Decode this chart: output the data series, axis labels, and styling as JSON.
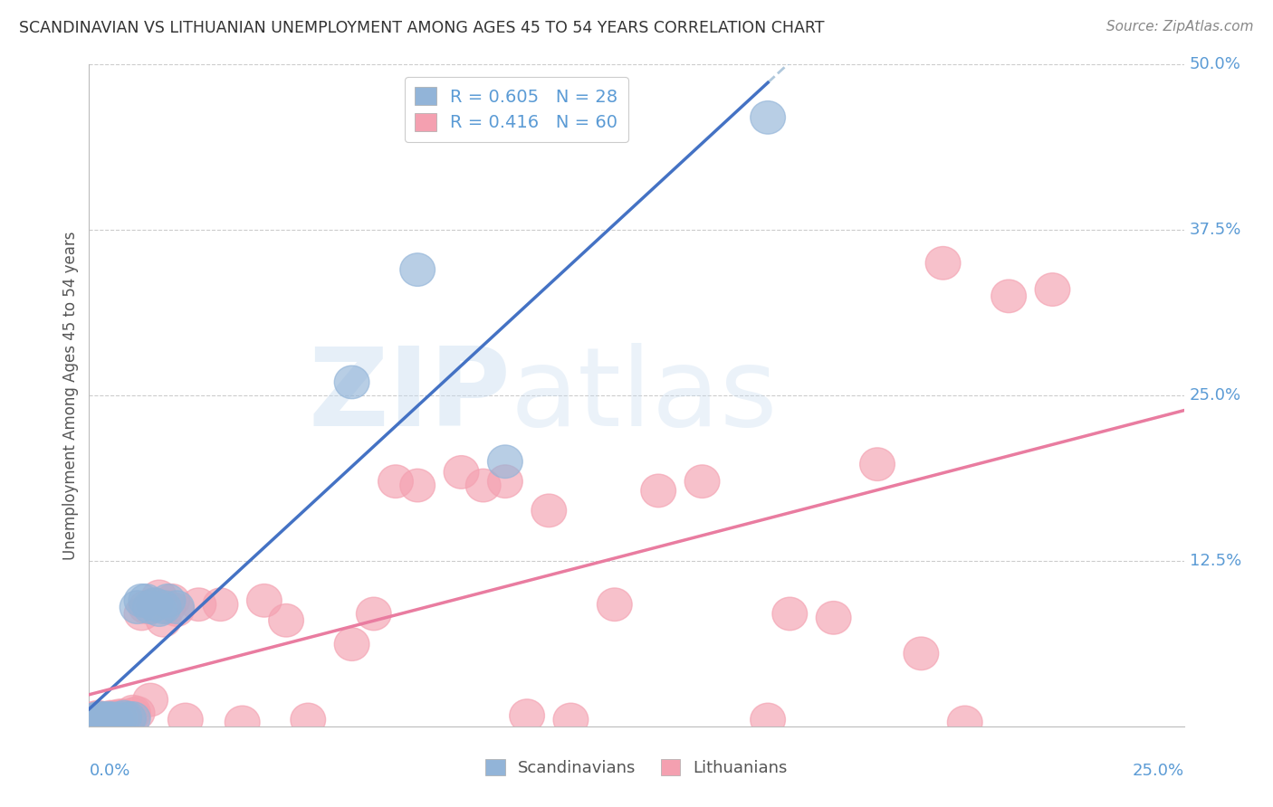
{
  "title": "SCANDINAVIAN VS LITHUANIAN UNEMPLOYMENT AMONG AGES 45 TO 54 YEARS CORRELATION CHART",
  "source": "Source: ZipAtlas.com",
  "ylabel": "Unemployment Among Ages 45 to 54 years",
  "xlim": [
    0.0,
    0.25
  ],
  "ylim": [
    0.0,
    0.5
  ],
  "legend_scand": "R = 0.605   N = 28",
  "legend_lith": "R = 0.416   N = 60",
  "scand_color": "#92B4D8",
  "lith_color": "#F4A0B0",
  "scand_line_color": "#4472C4",
  "lith_line_color": "#E97CA0",
  "scand_dashed_color": "#B0C8DC",
  "background_color": "#FFFFFF",
  "ytick_labels": [
    "50.0%",
    "37.5%",
    "25.0%",
    "12.5%"
  ],
  "ytick_values": [
    0.5,
    0.375,
    0.25,
    0.125
  ],
  "scand_x": [
    0.001,
    0.001,
    0.002,
    0.002,
    0.003,
    0.003,
    0.004,
    0.004,
    0.005,
    0.005,
    0.006,
    0.007,
    0.008,
    0.009,
    0.01,
    0.011,
    0.012,
    0.013,
    0.014,
    0.015,
    0.016,
    0.017,
    0.018,
    0.02,
    0.06,
    0.075,
    0.095,
    0.155
  ],
  "scand_y": [
    0.003,
    0.005,
    0.004,
    0.006,
    0.004,
    0.006,
    0.004,
    0.006,
    0.005,
    0.006,
    0.005,
    0.006,
    0.007,
    0.006,
    0.006,
    0.09,
    0.095,
    0.095,
    0.09,
    0.092,
    0.088,
    0.09,
    0.095,
    0.09,
    0.26,
    0.345,
    0.2,
    0.46
  ],
  "lith_x": [
    0.001,
    0.001,
    0.001,
    0.002,
    0.002,
    0.002,
    0.003,
    0.003,
    0.004,
    0.004,
    0.005,
    0.005,
    0.006,
    0.006,
    0.007,
    0.007,
    0.008,
    0.008,
    0.009,
    0.01,
    0.01,
    0.011,
    0.012,
    0.013,
    0.014,
    0.015,
    0.016,
    0.017,
    0.018,
    0.019,
    0.02,
    0.022,
    0.025,
    0.03,
    0.035,
    0.04,
    0.045,
    0.05,
    0.06,
    0.065,
    0.07,
    0.075,
    0.085,
    0.09,
    0.095,
    0.1,
    0.105,
    0.11,
    0.12,
    0.13,
    0.14,
    0.155,
    0.16,
    0.17,
    0.18,
    0.19,
    0.195,
    0.2,
    0.21,
    0.22
  ],
  "lith_y": [
    0.002,
    0.004,
    0.006,
    0.003,
    0.005,
    0.007,
    0.004,
    0.006,
    0.004,
    0.006,
    0.005,
    0.007,
    0.005,
    0.007,
    0.006,
    0.008,
    0.006,
    0.008,
    0.007,
    0.009,
    0.011,
    0.01,
    0.085,
    0.09,
    0.02,
    0.092,
    0.098,
    0.08,
    0.09,
    0.095,
    0.088,
    0.005,
    0.092,
    0.092,
    0.003,
    0.095,
    0.08,
    0.005,
    0.062,
    0.085,
    0.185,
    0.182,
    0.192,
    0.182,
    0.185,
    0.008,
    0.163,
    0.005,
    0.092,
    0.178,
    0.185,
    0.005,
    0.085,
    0.082,
    0.198,
    0.055,
    0.35,
    0.003,
    0.325,
    0.33
  ]
}
